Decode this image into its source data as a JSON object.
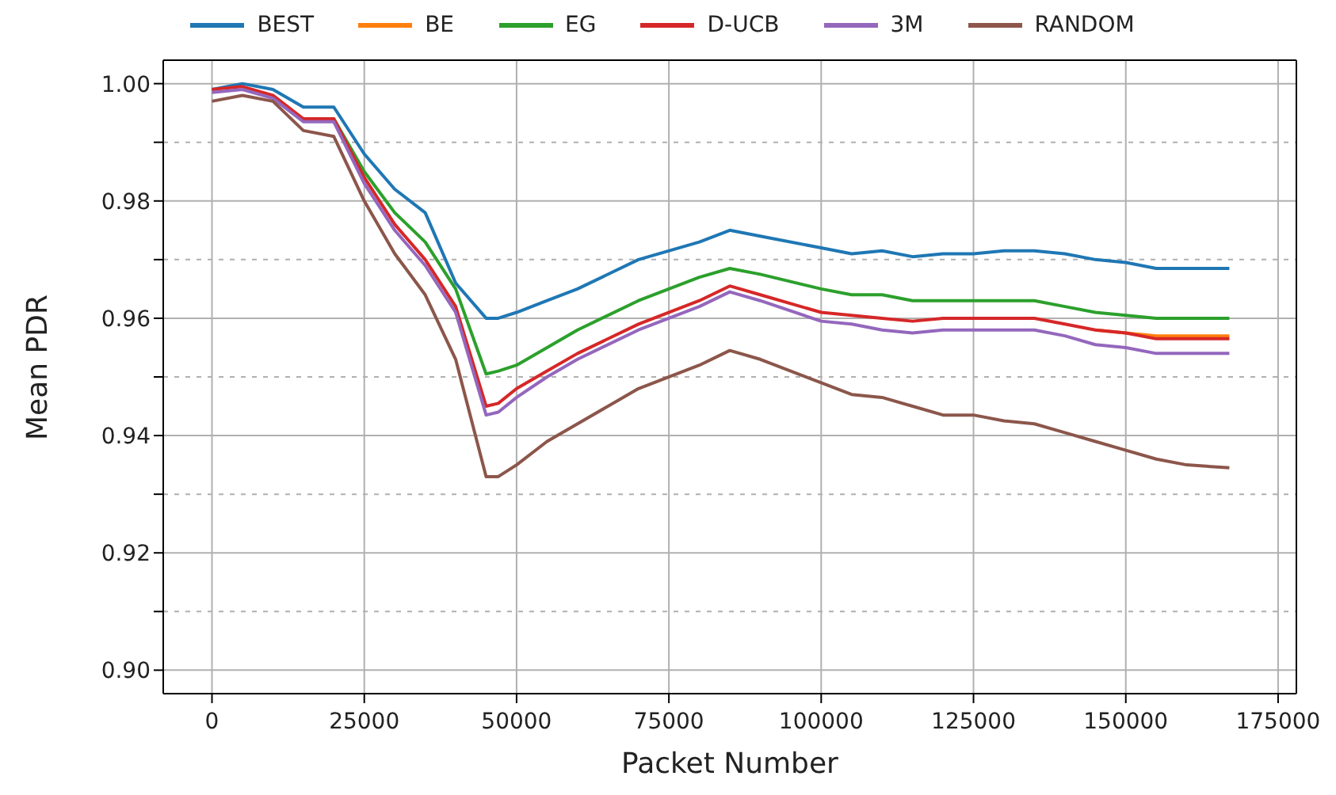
{
  "chart_data": {
    "type": "line",
    "xlabel": "Packet Number",
    "ylabel": "Mean PDR",
    "x": [
      0,
      5000,
      10000,
      15000,
      20000,
      25000,
      30000,
      35000,
      40000,
      45000,
      47000,
      50000,
      55000,
      60000,
      70000,
      80000,
      85000,
      90000,
      100000,
      105000,
      110000,
      115000,
      120000,
      125000,
      130000,
      135000,
      140000,
      145000,
      150000,
      155000,
      160000,
      167000
    ],
    "series": [
      {
        "name": "BEST",
        "color": "#1f77b4",
        "values": [
          0.999,
          1.0,
          0.999,
          0.996,
          0.996,
          0.988,
          0.982,
          0.978,
          0.966,
          0.96,
          0.96,
          0.961,
          0.963,
          0.965,
          0.97,
          0.973,
          0.975,
          0.974,
          0.972,
          0.971,
          0.9715,
          0.9705,
          0.971,
          0.971,
          0.9715,
          0.9715,
          0.971,
          0.97,
          0.9695,
          0.9685,
          0.9685,
          0.9685
        ]
      },
      {
        "name": "BE",
        "color": "#ff7f0e",
        "values": [
          null,
          null,
          null,
          null,
          null,
          null,
          null,
          null,
          null,
          null,
          null,
          null,
          null,
          null,
          null,
          null,
          null,
          null,
          null,
          null,
          null,
          null,
          null,
          null,
          null,
          null,
          null,
          0.958,
          0.9575,
          0.957,
          0.957,
          0.957
        ]
      },
      {
        "name": "EG",
        "color": "#2ca02c",
        "values": [
          null,
          null,
          null,
          0.994,
          0.994,
          0.985,
          0.978,
          0.973,
          0.965,
          0.9505,
          0.951,
          0.952,
          0.955,
          0.958,
          0.963,
          0.967,
          0.9685,
          0.9675,
          0.965,
          0.964,
          0.964,
          0.963,
          0.963,
          0.963,
          0.963,
          0.963,
          0.962,
          0.961,
          0.9605,
          0.96,
          0.96,
          0.96
        ]
      },
      {
        "name": "D-UCB",
        "color": "#d62728",
        "values": [
          0.999,
          0.9995,
          0.998,
          0.994,
          0.994,
          0.984,
          0.976,
          0.97,
          0.962,
          0.945,
          0.9455,
          0.948,
          0.951,
          0.954,
          0.959,
          0.963,
          0.9655,
          0.964,
          0.961,
          0.9605,
          0.96,
          0.9595,
          0.96,
          0.96,
          0.96,
          0.96,
          0.959,
          0.958,
          0.9575,
          0.9565,
          0.9565,
          0.9565
        ]
      },
      {
        "name": "3M",
        "color": "#9467bd",
        "values": [
          0.9985,
          0.999,
          0.9975,
          0.9935,
          0.9935,
          0.983,
          0.975,
          0.969,
          0.961,
          0.9435,
          0.944,
          0.9465,
          0.95,
          0.953,
          0.958,
          0.962,
          0.9645,
          0.963,
          0.9595,
          0.959,
          0.958,
          0.9575,
          0.958,
          0.958,
          0.958,
          0.958,
          0.957,
          0.9555,
          0.955,
          0.954,
          0.954,
          0.954
        ]
      },
      {
        "name": "RANDOM",
        "color": "#8c564b",
        "values": [
          0.997,
          0.998,
          0.997,
          0.992,
          0.991,
          0.98,
          0.971,
          0.964,
          0.953,
          0.933,
          0.933,
          0.935,
          0.939,
          0.942,
          0.948,
          0.952,
          0.9545,
          0.953,
          0.949,
          0.947,
          0.9465,
          0.945,
          0.9435,
          0.9435,
          0.9425,
          0.942,
          0.9405,
          0.939,
          0.9375,
          0.936,
          0.935,
          0.9345
        ]
      }
    ],
    "xlim": [
      -8000,
      178000
    ],
    "xticks": [
      0,
      25000,
      50000,
      75000,
      100000,
      125000,
      150000,
      175000
    ],
    "ylim": [
      0.896,
      1.004
    ],
    "yticks": [
      {
        "value": 0.9,
        "label": "0.90"
      },
      {
        "value": 0.91,
        "label": null
      },
      {
        "value": 0.92,
        "label": "0.92"
      },
      {
        "value": 0.93,
        "label": null
      },
      {
        "value": 0.94,
        "label": "0.94"
      },
      {
        "value": 0.95,
        "label": null
      },
      {
        "value": 0.96,
        "label": "0.96"
      },
      {
        "value": 0.97,
        "label": null
      },
      {
        "value": 0.98,
        "label": "0.98"
      },
      {
        "value": 0.99,
        "label": null
      },
      {
        "value": 1.0,
        "label": "1.00"
      }
    ],
    "grid": true,
    "legend": "top",
    "marker": "none",
    "line_style": "solid"
  }
}
